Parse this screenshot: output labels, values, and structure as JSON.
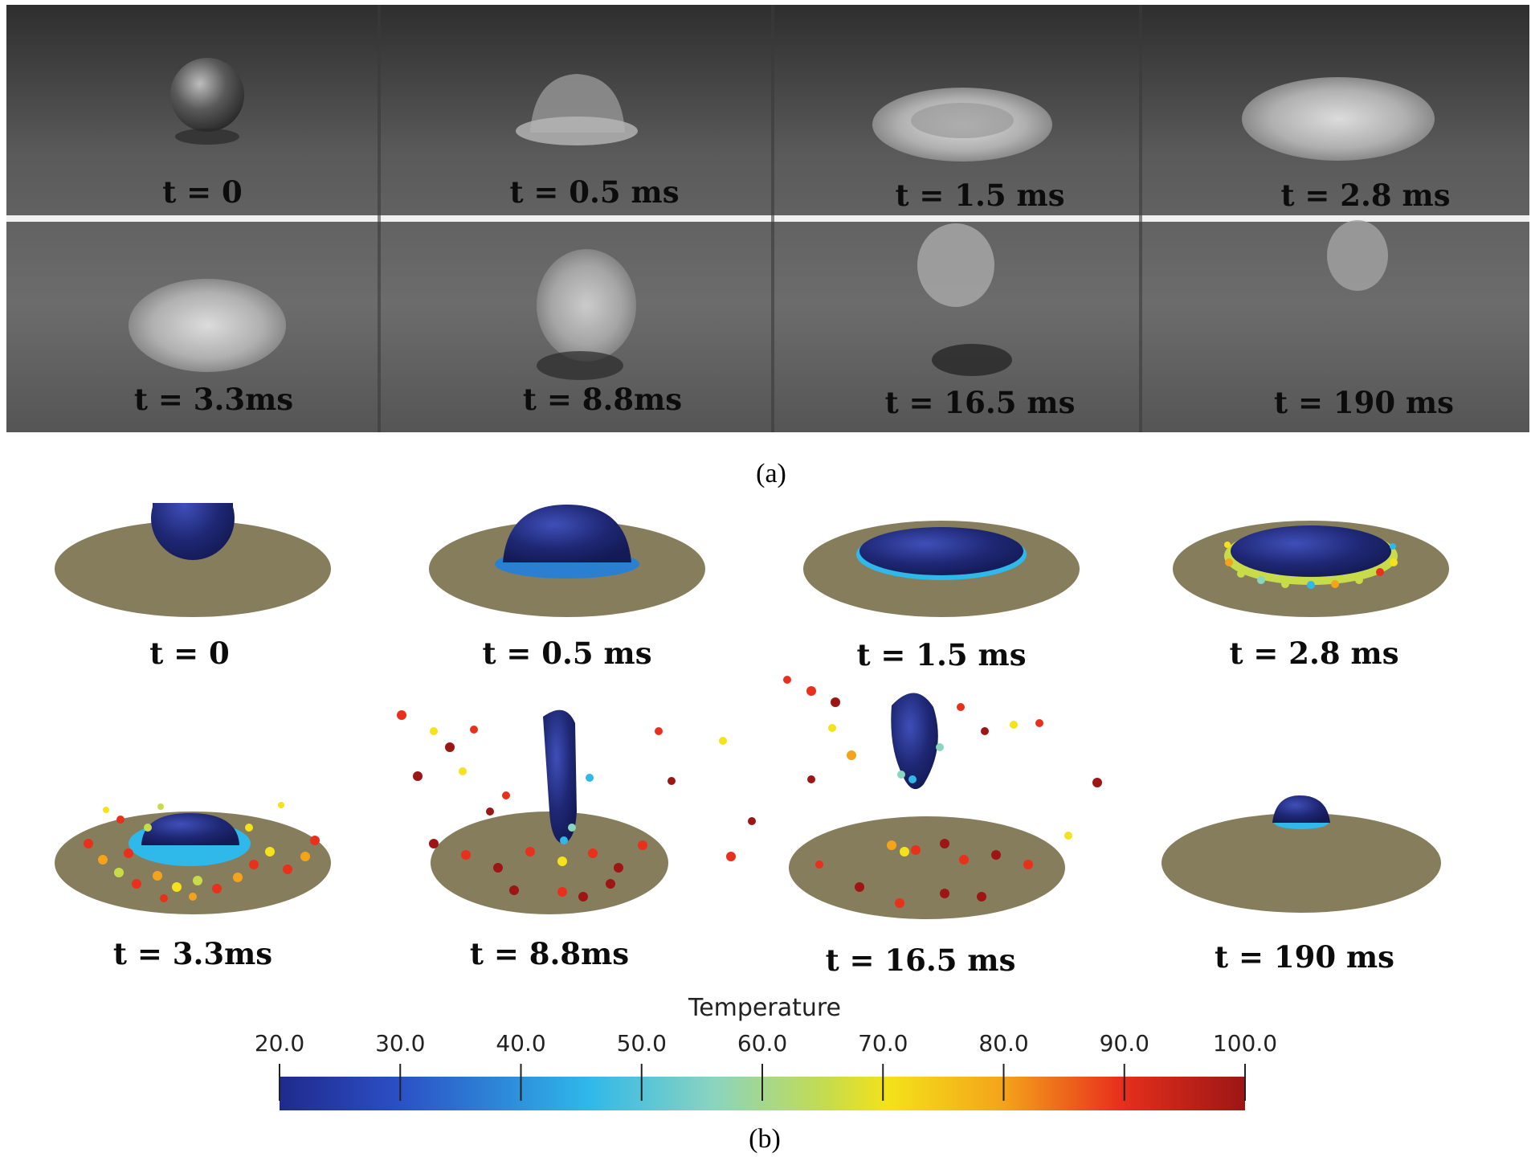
{
  "figure": {
    "panel_a": {
      "caption": "(a)",
      "frames": [
        {
          "label": "t = 0"
        },
        {
          "label": "t = 0.5 ms"
        },
        {
          "label": "t = 1.5 ms"
        },
        {
          "label": "t = 2.8 ms"
        },
        {
          "label": "t = 3.3ms"
        },
        {
          "label": "t = 8.8ms"
        },
        {
          "label": "t = 16.5 ms"
        },
        {
          "label": "t = 190 ms"
        }
      ]
    },
    "panel_b": {
      "caption": "(b)",
      "frames": [
        {
          "label": "t = 0"
        },
        {
          "label": "t = 0.5 ms"
        },
        {
          "label": "t = 1.5 ms"
        },
        {
          "label": "t = 2.8 ms"
        },
        {
          "label": "t = 3.3ms"
        },
        {
          "label": "t = 8.8ms"
        },
        {
          "label": "t = 16.5 ms"
        },
        {
          "label": "t = 190 ms"
        }
      ]
    },
    "colorbar": {
      "title": "Temperature",
      "min": 20.0,
      "max": 100.0,
      "ticks": [
        "20.0",
        "30.0",
        "40.0",
        "50.0",
        "60.0",
        "70.0",
        "80.0",
        "90.0",
        "100.0"
      ],
      "colors": [
        "#1f2a8c",
        "#2b4ec4",
        "#2fb8ea",
        "#8ad4c0",
        "#c8dc4a",
        "#f4e21a",
        "#f4a31a",
        "#e8301c",
        "#9c1616"
      ]
    },
    "colors": {
      "plate": "#857d5c",
      "droplet": "#1e2773",
      "photo_bg": "#4c4c4c"
    }
  }
}
